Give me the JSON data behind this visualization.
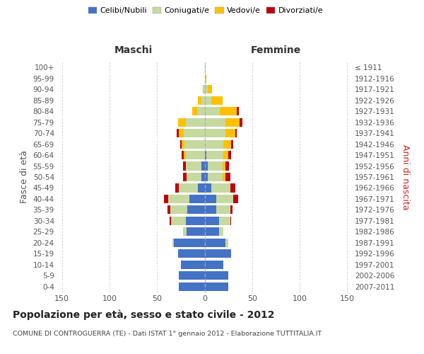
{
  "age_groups": [
    "0-4",
    "5-9",
    "10-14",
    "15-19",
    "20-24",
    "25-29",
    "30-34",
    "35-39",
    "40-44",
    "45-49",
    "50-54",
    "55-59",
    "60-64",
    "65-69",
    "70-74",
    "75-79",
    "80-84",
    "85-89",
    "90-94",
    "95-99",
    "100+"
  ],
  "birth_years": [
    "2007-2011",
    "2002-2006",
    "1997-2001",
    "1992-1996",
    "1987-1991",
    "1982-1986",
    "1977-1981",
    "1972-1976",
    "1967-1971",
    "1962-1966",
    "1957-1961",
    "1952-1956",
    "1947-1951",
    "1942-1946",
    "1937-1941",
    "1932-1936",
    "1927-1931",
    "1922-1926",
    "1917-1921",
    "1912-1916",
    "≤ 1911"
  ],
  "males": {
    "celibe": [
      27,
      27,
      25,
      28,
      32,
      19,
      20,
      18,
      16,
      7,
      3,
      3,
      0,
      0,
      0,
      0,
      0,
      0,
      0,
      0,
      0
    ],
    "coniugato": [
      0,
      0,
      0,
      0,
      2,
      4,
      15,
      18,
      22,
      20,
      16,
      17,
      20,
      21,
      22,
      20,
      8,
      3,
      1,
      0,
      0
    ],
    "vedovo": [
      0,
      0,
      0,
      0,
      0,
      0,
      0,
      0,
      0,
      0,
      0,
      0,
      2,
      3,
      5,
      8,
      5,
      4,
      1,
      0,
      0
    ],
    "divorziato": [
      0,
      0,
      0,
      0,
      0,
      0,
      2,
      3,
      5,
      4,
      4,
      3,
      2,
      2,
      2,
      0,
      0,
      0,
      0,
      0,
      0
    ]
  },
  "females": {
    "nubile": [
      25,
      25,
      20,
      28,
      22,
      15,
      15,
      12,
      12,
      7,
      3,
      3,
      2,
      0,
      0,
      0,
      0,
      0,
      0,
      0,
      0
    ],
    "coniugata": [
      0,
      0,
      0,
      0,
      3,
      5,
      12,
      15,
      18,
      20,
      16,
      16,
      18,
      20,
      22,
      22,
      16,
      7,
      3,
      1,
      0
    ],
    "vedova": [
      0,
      0,
      0,
      0,
      0,
      0,
      0,
      0,
      0,
      0,
      3,
      3,
      5,
      8,
      10,
      15,
      18,
      12,
      5,
      1,
      1
    ],
    "divorziata": [
      0,
      0,
      0,
      0,
      0,
      0,
      1,
      2,
      5,
      5,
      5,
      4,
      3,
      2,
      2,
      3,
      2,
      0,
      0,
      0,
      0
    ]
  },
  "colors": {
    "celibe": "#4472c4",
    "coniugato": "#c5d9a0",
    "vedovo": "#ffc000",
    "divorziato": "#c0000c"
  },
  "legend_labels": [
    "Celibi/Nubili",
    "Coniugati/e",
    "Vedovi/e",
    "Divorziati/e"
  ],
  "title": "Popolazione per età, sesso e stato civile - 2012",
  "subtitle": "COMUNE DI CONTROGUERRA (TE) - Dati ISTAT 1° gennaio 2012 - Elaborazione TUTTITALIA.IT",
  "xlabel_left": "Maschi",
  "xlabel_right": "Femmine",
  "ylabel_left": "Fasce di età",
  "ylabel_right": "Anni di nascita",
  "xlim": 155,
  "bg_color": "#ffffff",
  "grid_color": "#bbbbbb"
}
